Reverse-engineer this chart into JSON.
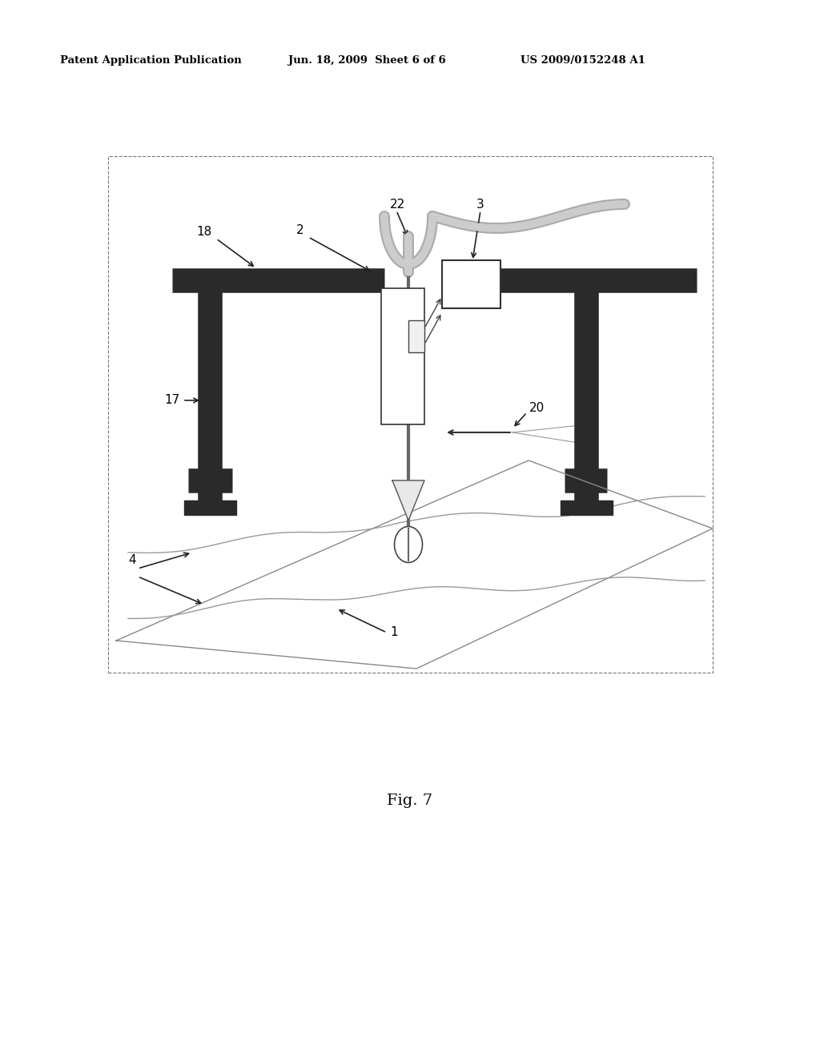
{
  "bg_color": "#ffffff",
  "header_text": "Patent Application Publication",
  "header_date": "Jun. 18, 2009  Sheet 6 of 6",
  "header_patent": "US 2009/0152248 A1",
  "fig_label": "Fig. 7",
  "frame_color": "#2a2a2a",
  "line_color": "#333333",
  "gray_color": "#888888",
  "light_gray": "#bbbbbb"
}
